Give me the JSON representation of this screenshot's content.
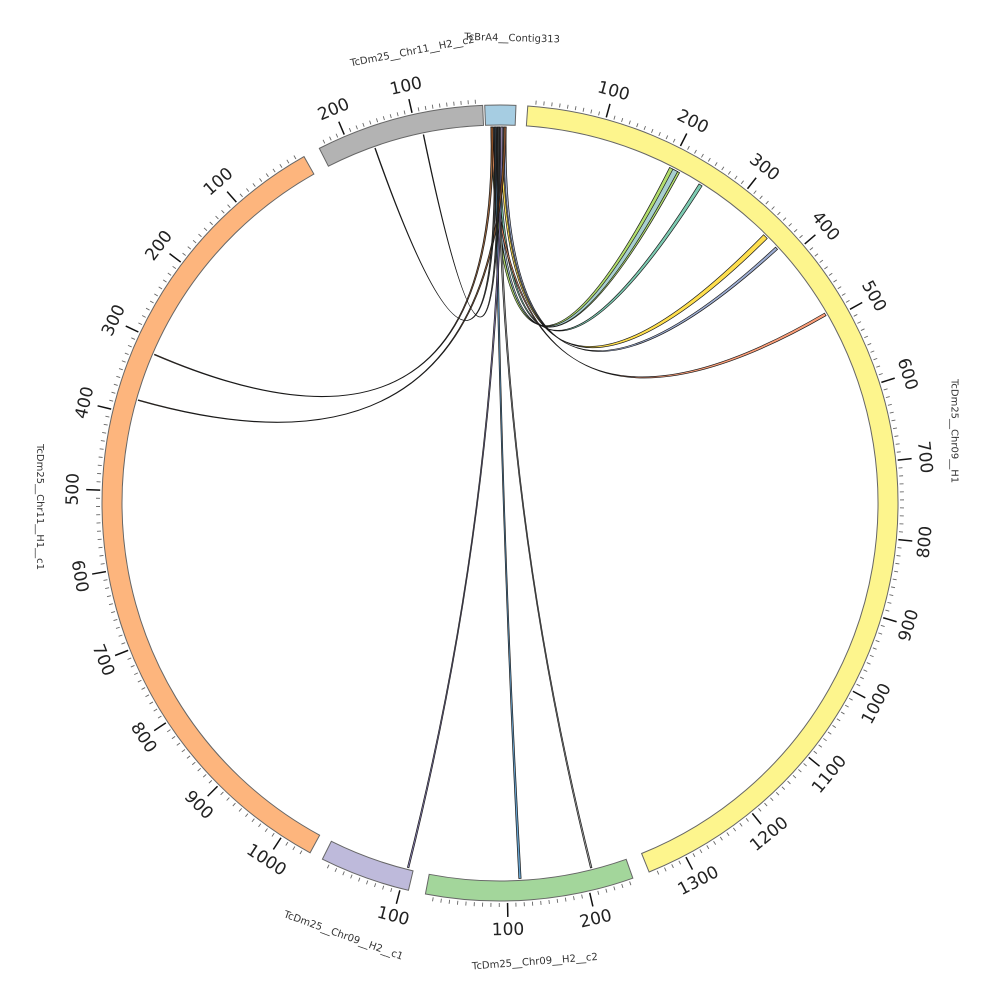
{
  "chart_data": {
    "type": "chord",
    "segments": [
      {
        "name": "TcBrA4__Contig313",
        "length": 20,
        "color": "#a6cde2",
        "orientation": "forward",
        "labels": []
      },
      {
        "name": "TcDm25__Chr09__H1",
        "length": 1350,
        "color": "#fdf58d",
        "orientation": "forward",
        "labels": [
          "100",
          "200",
          "300",
          "400",
          "500",
          "600",
          "700",
          "800",
          "900",
          "1000",
          "1100",
          "1200",
          "1300"
        ]
      },
      {
        "name": "TcDm25__Chr09__H2__c2",
        "length": 255,
        "color": "#a3d69b",
        "orientation": "reverse",
        "labels": [
          "100",
          "200"
        ]
      },
      {
        "name": "TcDm25__Chr09__H2__c1",
        "length": 110,
        "color": "#bebadb",
        "orientation": "reverse",
        "labels": [
          "100"
        ]
      },
      {
        "name": "TcDm25__Chr11__H1__c1",
        "length": 1040,
        "color": "#fdb57d",
        "orientation": "reverse",
        "labels": [
          "100",
          "200",
          "300",
          "400",
          "500",
          "600",
          "700",
          "800",
          "900",
          "1000"
        ]
      },
      {
        "name": "TcDm25__Chr11__H2__c2",
        "length": 240,
        "color": "#b3b3b3",
        "orientation": "reverse",
        "labels": [
          "100",
          "200"
        ]
      }
    ],
    "links": [
      {
        "source": "TcBrA4__Contig313",
        "target": "TcDm25__Chr09__H1",
        "target_start": 200,
        "target_end": 215,
        "color": "#a6d854"
      },
      {
        "source": "TcBrA4__Contig313",
        "target": "TcDm25__Chr09__H1",
        "target_start": 205,
        "target_end": 212,
        "color": "#a6cde2"
      },
      {
        "source": "TcBrA4__Contig313",
        "target": "TcDm25__Chr09__H1",
        "target_start": 245,
        "target_end": 250,
        "color": "#66c2a5"
      },
      {
        "source": "TcBrA4__Contig313",
        "target": "TcDm25__Chr09__H1",
        "target_start": 355,
        "target_end": 362,
        "color": "#ffd92f"
      },
      {
        "source": "TcBrA4__Contig313",
        "target": "TcDm25__Chr09__H1",
        "target_start": 378,
        "target_end": 382,
        "color": "#8da0cb"
      },
      {
        "source": "TcBrA4__Contig313",
        "target": "TcDm25__Chr09__H1",
        "target_start": 488,
        "target_end": 492,
        "color": "#fc8d62"
      },
      {
        "source": "TcBrA4__Contig313",
        "target": "TcDm25__Chr09__H2__c2",
        "target_start": 115,
        "target_end": 118,
        "color": "#4a90c4"
      },
      {
        "source": "TcBrA4__Contig313",
        "target": "TcDm25__Chr09__H2__c2",
        "target_start": 208,
        "target_end": 210,
        "color": "#999999"
      },
      {
        "source": "TcBrA4__Contig313",
        "target": "TcDm25__Chr09__H2__c1",
        "target_start": 102,
        "target_end": 104,
        "color": "#7b6fb0"
      },
      {
        "source": "TcBrA4__Contig313",
        "target": "TcDm25__Chr11__H1__c1",
        "target_start": 380,
        "target_end": 381,
        "color": "#8a4a1c"
      },
      {
        "source": "TcBrA4__Contig313",
        "target": "TcDm25__Chr11__H1__c1",
        "target_start": 317,
        "target_end": 318,
        "color": "#8a4a1c"
      },
      {
        "source": "TcBrA4__Contig313",
        "target": "TcDm25__Chr11__H2__c2",
        "target_start": 165,
        "target_end": 166,
        "color": "#222222"
      },
      {
        "source": "TcBrA4__Contig313",
        "target": "TcDm25__Chr11__H2__c2",
        "target_start": 90,
        "target_end": 91,
        "color": "#222222"
      }
    ]
  }
}
